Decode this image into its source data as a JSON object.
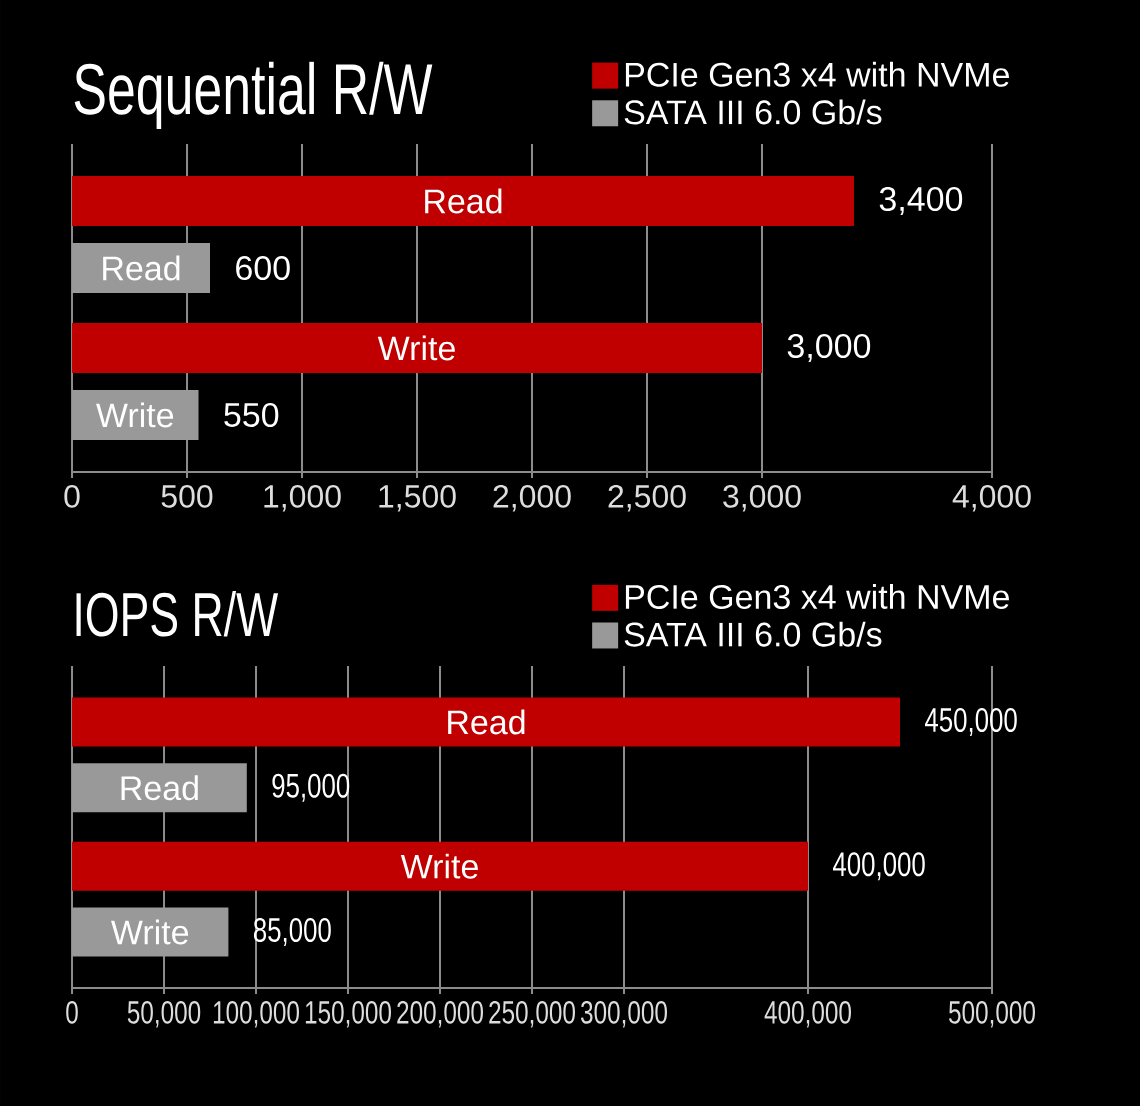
{
  "chart_data": [
    {
      "type": "bar",
      "orientation": "horizontal",
      "title": "Sequential R/W",
      "categories": [
        "Read",
        "Write"
      ],
      "series": [
        {
          "name": "PCIe Gen3 x4 with NVMe",
          "color": "#c00000",
          "values": [
            3400,
            3000
          ],
          "value_labels": [
            "3,400",
            "3,000"
          ]
        },
        {
          "name": "SATA III 6.0 Gb/s",
          "color": "#999999",
          "values": [
            600,
            550
          ],
          "value_labels": [
            "600",
            "550"
          ]
        }
      ],
      "xlim": [
        0,
        4000
      ],
      "xticks": [
        0,
        500,
        {
          "value": 1000,
          "label": "1,000"
        },
        {
          "value": 1500,
          "label": "1,500"
        },
        {
          "value": 2000,
          "label": "2,000"
        },
        {
          "value": 2500,
          "label": "2,500"
        },
        {
          "value": 3000,
          "label": "3,000"
        },
        {
          "value": 4000,
          "label": "4,000"
        }
      ],
      "grid": "x",
      "legend": "top right"
    },
    {
      "type": "bar",
      "orientation": "horizontal",
      "title": "IOPS R/W",
      "categories": [
        "Read",
        "Write"
      ],
      "series": [
        {
          "name": "PCIe Gen3 x4 with NVMe",
          "color": "#c00000",
          "values": [
            450000,
            400000
          ],
          "value_labels": [
            "450,000",
            "400,000"
          ]
        },
        {
          "name": "SATA III 6.0 Gb/s",
          "color": "#999999",
          "values": [
            95000,
            85000
          ],
          "value_labels": [
            "95,000",
            "85,000"
          ]
        }
      ],
      "xlim": [
        0,
        500000
      ],
      "xticks": [
        0,
        {
          "value": 50000,
          "label": "50,000"
        },
        {
          "value": 100000,
          "label": "100,000"
        },
        {
          "value": 150000,
          "label": "150,000"
        },
        {
          "value": 200000,
          "label": "200,000"
        },
        {
          "value": 250000,
          "label": "250,000"
        },
        {
          "value": 300000,
          "label": "300,000"
        },
        {
          "value": 400000,
          "label": "400,000"
        },
        {
          "value": 500000,
          "label": "500,000"
        }
      ],
      "grid": "x",
      "legend": "top right"
    }
  ]
}
